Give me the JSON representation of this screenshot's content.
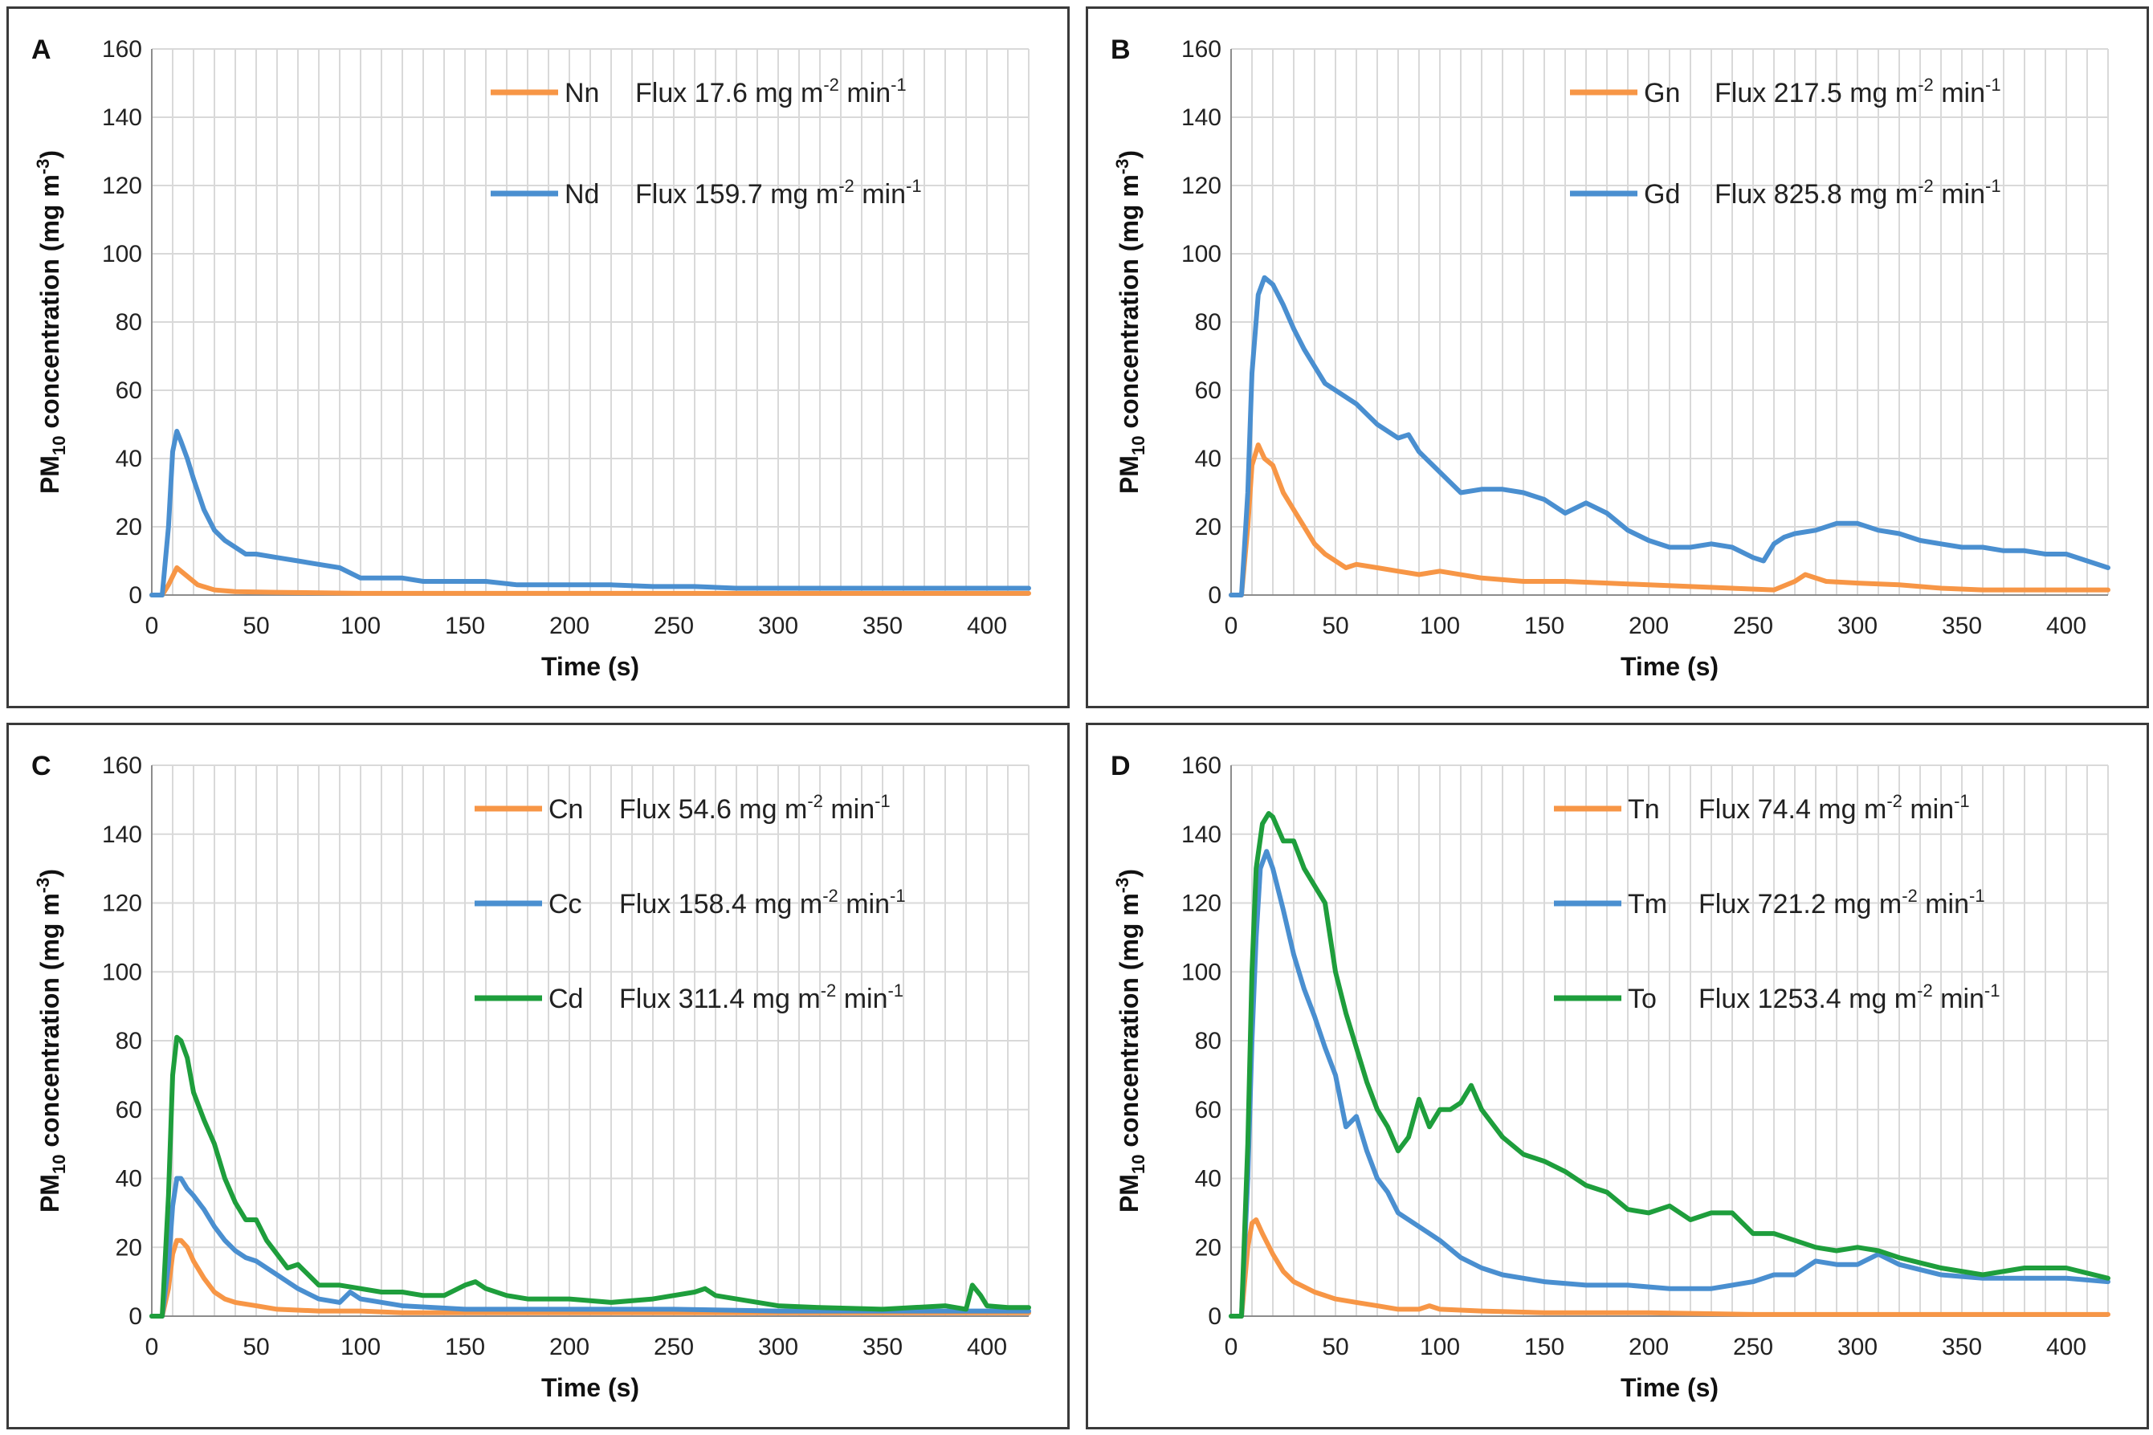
{
  "chart_data": [
    {
      "type": "line",
      "panel_label": "A",
      "xlabel": "Time (s)",
      "ylabel": {
        "main": "PM",
        "sub": "10",
        "rest": " concentration (mg m",
        "sup": "-3",
        "end": ")"
      },
      "xlim": [
        0,
        420
      ],
      "ylim": [
        0,
        160
      ],
      "xticks": [
        0,
        50,
        100,
        150,
        200,
        250,
        300,
        350,
        400
      ],
      "yticks": [
        0,
        20,
        40,
        60,
        80,
        100,
        120,
        140,
        160
      ],
      "grid": true,
      "legend_position": "top-right",
      "series": [
        {
          "name": "Nn",
          "flux_label": "Flux 17.6 mg m",
          "flux_sup": "-2",
          "flux_unit": " min",
          "flux_unit_sup": "-1",
          "color": "#f79646",
          "x": [
            0,
            5,
            8,
            12,
            16,
            22,
            30,
            40,
            60,
            100,
            150,
            200,
            250,
            300,
            350,
            420
          ],
          "y": [
            0,
            0,
            3,
            8,
            6,
            3,
            1.5,
            1,
            0.8,
            0.5,
            0.5,
            0.5,
            0.5,
            0.5,
            0.5,
            0.5
          ]
        },
        {
          "name": "Nd",
          "flux_label": "Flux 159.7 mg m",
          "flux_sup": "-2",
          "flux_unit": " min",
          "flux_unit_sup": "-1",
          "color": "#4a8fd0",
          "x": [
            0,
            5,
            8,
            10,
            12,
            14,
            17,
            20,
            25,
            30,
            35,
            40,
            45,
            50,
            60,
            70,
            80,
            90,
            100,
            110,
            120,
            130,
            140,
            150,
            160,
            175,
            190,
            200,
            220,
            240,
            260,
            280,
            300,
            320,
            340,
            360,
            380,
            400,
            420
          ],
          "y": [
            0,
            0,
            20,
            42,
            48,
            45,
            40,
            34,
            25,
            19,
            16,
            14,
            12,
            12,
            11,
            10,
            9,
            8,
            5,
            5,
            5,
            4,
            4,
            4,
            4,
            3,
            3,
            3,
            3,
            2.5,
            2.5,
            2,
            2,
            2,
            2,
            2,
            2,
            2,
            2
          ]
        }
      ]
    },
    {
      "type": "line",
      "panel_label": "B",
      "xlabel": "Time (s)",
      "ylabel": {
        "main": "PM",
        "sub": "10",
        "rest": " concentration (mg m",
        "sup": "-3",
        "end": ")"
      },
      "xlim": [
        0,
        420
      ],
      "ylim": [
        0,
        160
      ],
      "xticks": [
        0,
        50,
        100,
        150,
        200,
        250,
        300,
        350,
        400
      ],
      "yticks": [
        0,
        20,
        40,
        60,
        80,
        100,
        120,
        140,
        160
      ],
      "grid": true,
      "legend_position": "top-right",
      "series": [
        {
          "name": "Gn",
          "flux_label": "Flux 217.5 mg m",
          "flux_sup": "-2",
          "flux_unit": " min",
          "flux_unit_sup": "-1",
          "color": "#f79646",
          "x": [
            0,
            5,
            8,
            10,
            13,
            16,
            20,
            25,
            30,
            35,
            40,
            45,
            50,
            55,
            60,
            70,
            80,
            90,
            100,
            120,
            140,
            160,
            180,
            200,
            220,
            240,
            260,
            270,
            275,
            285,
            300,
            320,
            340,
            360,
            380,
            400,
            420
          ],
          "y": [
            0,
            0,
            20,
            38,
            44,
            40,
            38,
            30,
            25,
            20,
            15,
            12,
            10,
            8,
            9,
            8,
            7,
            6,
            7,
            5,
            4,
            4,
            3.5,
            3,
            2.5,
            2,
            1.5,
            4,
            6,
            4,
            3.5,
            3,
            2,
            1.5,
            1.5,
            1.5,
            1.5
          ]
        },
        {
          "name": "Gd",
          "flux_label": "Flux 825.8 mg m",
          "flux_sup": "-2",
          "flux_unit": " min",
          "flux_unit_sup": "-1",
          "color": "#4a8fd0",
          "x": [
            0,
            5,
            8,
            10,
            13,
            16,
            20,
            25,
            30,
            35,
            40,
            45,
            50,
            60,
            70,
            80,
            85,
            90,
            100,
            110,
            120,
            130,
            140,
            150,
            160,
            170,
            180,
            190,
            200,
            210,
            220,
            230,
            240,
            250,
            255,
            260,
            265,
            270,
            280,
            290,
            300,
            310,
            320,
            330,
            340,
            350,
            360,
            370,
            380,
            390,
            400,
            410,
            420
          ],
          "y": [
            0,
            0,
            30,
            65,
            88,
            93,
            91,
            85,
            78,
            72,
            67,
            62,
            60,
            56,
            50,
            46,
            47,
            42,
            36,
            30,
            31,
            31,
            30,
            28,
            24,
            27,
            24,
            19,
            16,
            14,
            14,
            15,
            14,
            11,
            10,
            15,
            17,
            18,
            19,
            21,
            21,
            19,
            18,
            16,
            15,
            14,
            14,
            13,
            13,
            12,
            12,
            10,
            8
          ]
        }
      ]
    },
    {
      "type": "line",
      "panel_label": "C",
      "xlabel": "Time (s)",
      "ylabel": {
        "main": "PM",
        "sub": "10",
        "rest": " concentration (mg m",
        "sup": "-3",
        "end": ")"
      },
      "xlim": [
        0,
        420
      ],
      "ylim": [
        0,
        160
      ],
      "xticks": [
        0,
        50,
        100,
        150,
        200,
        250,
        300,
        350,
        400
      ],
      "yticks": [
        0,
        20,
        40,
        60,
        80,
        100,
        120,
        140,
        160
      ],
      "grid": true,
      "legend_position": "top-right",
      "series": [
        {
          "name": "Cn",
          "flux_label": "Flux 54.6 mg m",
          "flux_sup": "-2",
          "flux_unit": " min",
          "flux_unit_sup": "-1",
          "color": "#f79646",
          "x": [
            0,
            5,
            8,
            10,
            12,
            14,
            17,
            20,
            25,
            30,
            35,
            40,
            50,
            60,
            80,
            100,
            120,
            150,
            200,
            250,
            300,
            350,
            400,
            420
          ],
          "y": [
            0,
            0,
            8,
            18,
            22,
            22,
            20,
            16,
            11,
            7,
            5,
            4,
            3,
            2,
            1.5,
            1.5,
            1,
            1,
            1,
            1,
            1,
            1,
            1,
            1
          ]
        },
        {
          "name": "Cc",
          "flux_label": "Flux 158.4 mg m",
          "flux_sup": "-2",
          "flux_unit": " min",
          "flux_unit_sup": "-1",
          "color": "#4a8fd0",
          "x": [
            0,
            5,
            8,
            10,
            12,
            14,
            17,
            20,
            25,
            30,
            35,
            40,
            45,
            50,
            60,
            70,
            80,
            90,
            95,
            100,
            120,
            150,
            200,
            250,
            300,
            350,
            400,
            420
          ],
          "y": [
            0,
            0,
            15,
            32,
            40,
            40,
            37,
            35,
            31,
            26,
            22,
            19,
            17,
            16,
            12,
            8,
            5,
            4,
            7,
            5,
            3,
            2,
            2,
            2,
            1.5,
            1.5,
            1.5,
            1.5
          ]
        },
        {
          "name": "Cd",
          "flux_label": "Flux 311.4 mg m",
          "flux_sup": "-2",
          "flux_unit": " min",
          "flux_unit_sup": "-1",
          "color": "#1e9e3c",
          "x": [
            0,
            5,
            8,
            10,
            12,
            14,
            17,
            20,
            25,
            30,
            35,
            40,
            45,
            50,
            55,
            60,
            65,
            70,
            75,
            80,
            90,
            100,
            110,
            120,
            130,
            140,
            150,
            155,
            160,
            170,
            180,
            200,
            220,
            240,
            260,
            265,
            270,
            280,
            300,
            320,
            350,
            380,
            390,
            393,
            397,
            400,
            410,
            420
          ],
          "y": [
            0,
            0,
            35,
            70,
            81,
            80,
            75,
            65,
            57,
            50,
            40,
            33,
            28,
            28,
            22,
            18,
            14,
            15,
            12,
            9,
            9,
            8,
            7,
            7,
            6,
            6,
            9,
            10,
            8,
            6,
            5,
            5,
            4,
            5,
            7,
            8,
            6,
            5,
            3,
            2.5,
            2,
            3,
            2,
            9,
            6,
            3,
            2.5,
            2.5
          ]
        }
      ]
    },
    {
      "type": "line",
      "panel_label": "D",
      "xlabel": "Time (s)",
      "ylabel": {
        "main": "PM",
        "sub": "10",
        "rest": " concentration (mg m",
        "sup": "-3",
        "end": ")"
      },
      "xlim": [
        0,
        420
      ],
      "ylim": [
        0,
        160
      ],
      "xticks": [
        0,
        50,
        100,
        150,
        200,
        250,
        300,
        350,
        400
      ],
      "yticks": [
        0,
        20,
        40,
        60,
        80,
        100,
        120,
        140,
        160
      ],
      "grid": true,
      "legend_position": "top-right",
      "series": [
        {
          "name": "Tn",
          "flux_label": "Flux 74.4 mg m",
          "flux_sup": "-2",
          "flux_unit": " min",
          "flux_unit_sup": "-1",
          "color": "#f79646",
          "x": [
            0,
            5,
            8,
            10,
            12,
            15,
            20,
            25,
            30,
            40,
            50,
            60,
            70,
            80,
            90,
            95,
            100,
            120,
            150,
            200,
            250,
            300,
            350,
            420
          ],
          "y": [
            0,
            0,
            20,
            27,
            28,
            24,
            18,
            13,
            10,
            7,
            5,
            4,
            3,
            2,
            2,
            3,
            2,
            1.5,
            1,
            1,
            0.5,
            0.5,
            0.5,
            0.5
          ]
        },
        {
          "name": "Tm",
          "flux_label": "Flux 721.2 mg m",
          "flux_sup": "-2",
          "flux_unit": " min",
          "flux_unit_sup": "-1",
          "color": "#4a8fd0",
          "x": [
            0,
            5,
            8,
            10,
            12,
            14,
            17,
            20,
            25,
            30,
            35,
            40,
            45,
            50,
            55,
            60,
            65,
            70,
            75,
            80,
            90,
            100,
            110,
            120,
            130,
            150,
            170,
            190,
            210,
            230,
            250,
            260,
            270,
            280,
            290,
            300,
            310,
            320,
            340,
            360,
            380,
            400,
            420
          ],
          "y": [
            0,
            0,
            40,
            80,
            110,
            130,
            135,
            130,
            118,
            105,
            95,
            87,
            78,
            70,
            55,
            58,
            48,
            40,
            36,
            30,
            26,
            22,
            17,
            14,
            12,
            10,
            9,
            9,
            8,
            8,
            10,
            12,
            12,
            16,
            15,
            15,
            18,
            15,
            12,
            11,
            11,
            11,
            10
          ]
        },
        {
          "name": "To",
          "flux_label": "Flux 1253.4 mg m",
          "flux_sup": "-2",
          "flux_unit": " min",
          "flux_unit_sup": "-1",
          "color": "#1e9e3c",
          "x": [
            0,
            5,
            8,
            10,
            12,
            15,
            18,
            20,
            25,
            30,
            35,
            40,
            45,
            50,
            55,
            60,
            65,
            70,
            75,
            80,
            85,
            90,
            95,
            100,
            105,
            110,
            115,
            120,
            130,
            140,
            150,
            160,
            170,
            180,
            190,
            200,
            210,
            220,
            230,
            240,
            250,
            260,
            270,
            280,
            290,
            300,
            310,
            320,
            340,
            360,
            380,
            400,
            420
          ],
          "y": [
            0,
            0,
            50,
            100,
            130,
            143,
            146,
            145,
            138,
            138,
            130,
            125,
            120,
            100,
            88,
            78,
            68,
            60,
            55,
            48,
            52,
            63,
            55,
            60,
            60,
            62,
            67,
            60,
            52,
            47,
            45,
            42,
            38,
            36,
            31,
            30,
            32,
            28,
            30,
            30,
            24,
            24,
            22,
            20,
            19,
            20,
            19,
            17,
            14,
            12,
            14,
            14,
            11
          ]
        }
      ]
    }
  ]
}
